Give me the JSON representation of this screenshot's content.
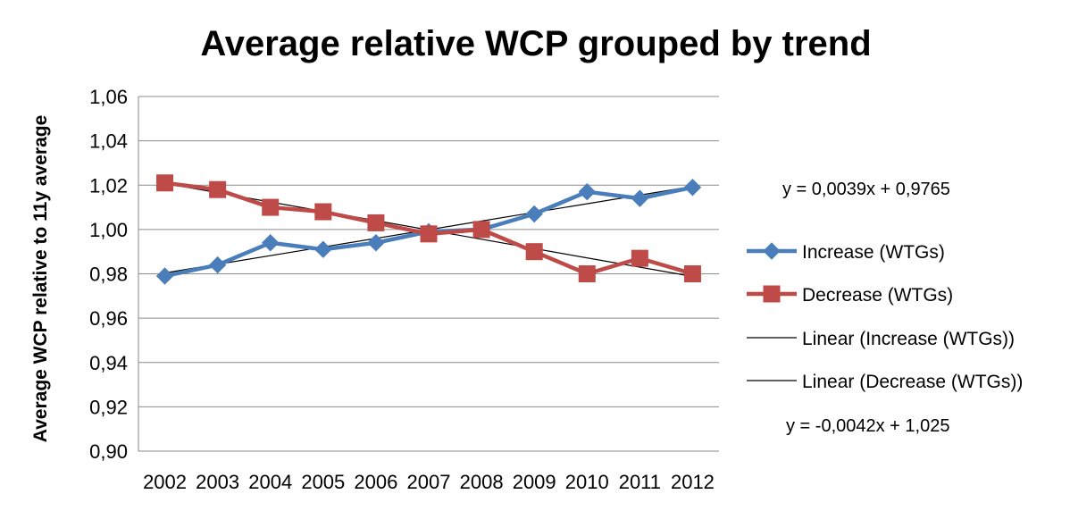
{
  "chart_data": {
    "type": "line",
    "title": "Average relative WCP grouped by trend",
    "ylabel": "Average WCP relative to 11y average",
    "xlabel": "",
    "ylim": [
      0.9,
      1.06
    ],
    "yticks": [
      "0,90",
      "0,92",
      "0,94",
      "0,96",
      "0,98",
      "1,00",
      "1,02",
      "1,04",
      "1,06"
    ],
    "ytick_values": [
      0.9,
      0.92,
      0.94,
      0.96,
      0.98,
      1.0,
      1.02,
      1.04,
      1.06
    ],
    "categories": [
      "2002",
      "2003",
      "2004",
      "2005",
      "2006",
      "2007",
      "2008",
      "2009",
      "2010",
      "2011",
      "2012"
    ],
    "grid": "horizontal",
    "legend_position": "right",
    "series": [
      {
        "name": "Increase (WTGs)",
        "color": "#4a7ebb",
        "marker": "diamond",
        "values": [
          0.979,
          0.984,
          0.994,
          0.991,
          0.994,
          0.999,
          1.0,
          1.007,
          1.017,
          1.014,
          1.019
        ]
      },
      {
        "name": "Decrease (WTGs)",
        "color": "#be4b48",
        "marker": "square",
        "values": [
          1.021,
          1.018,
          1.01,
          1.008,
          1.003,
          0.998,
          1.0,
          0.99,
          0.98,
          0.987,
          0.98
        ]
      }
    ],
    "trendlines": [
      {
        "name": "Linear (Increase (WTGs))",
        "color": "#000000",
        "slope": 0.0039,
        "intercept": 0.9765,
        "equation": "y = 0,0039x + 0,9765"
      },
      {
        "name": "Linear (Decrease (WTGs))",
        "color": "#000000",
        "slope": -0.0042,
        "intercept": 1.025,
        "equation": "y = -0,0042x + 1,025"
      }
    ]
  }
}
